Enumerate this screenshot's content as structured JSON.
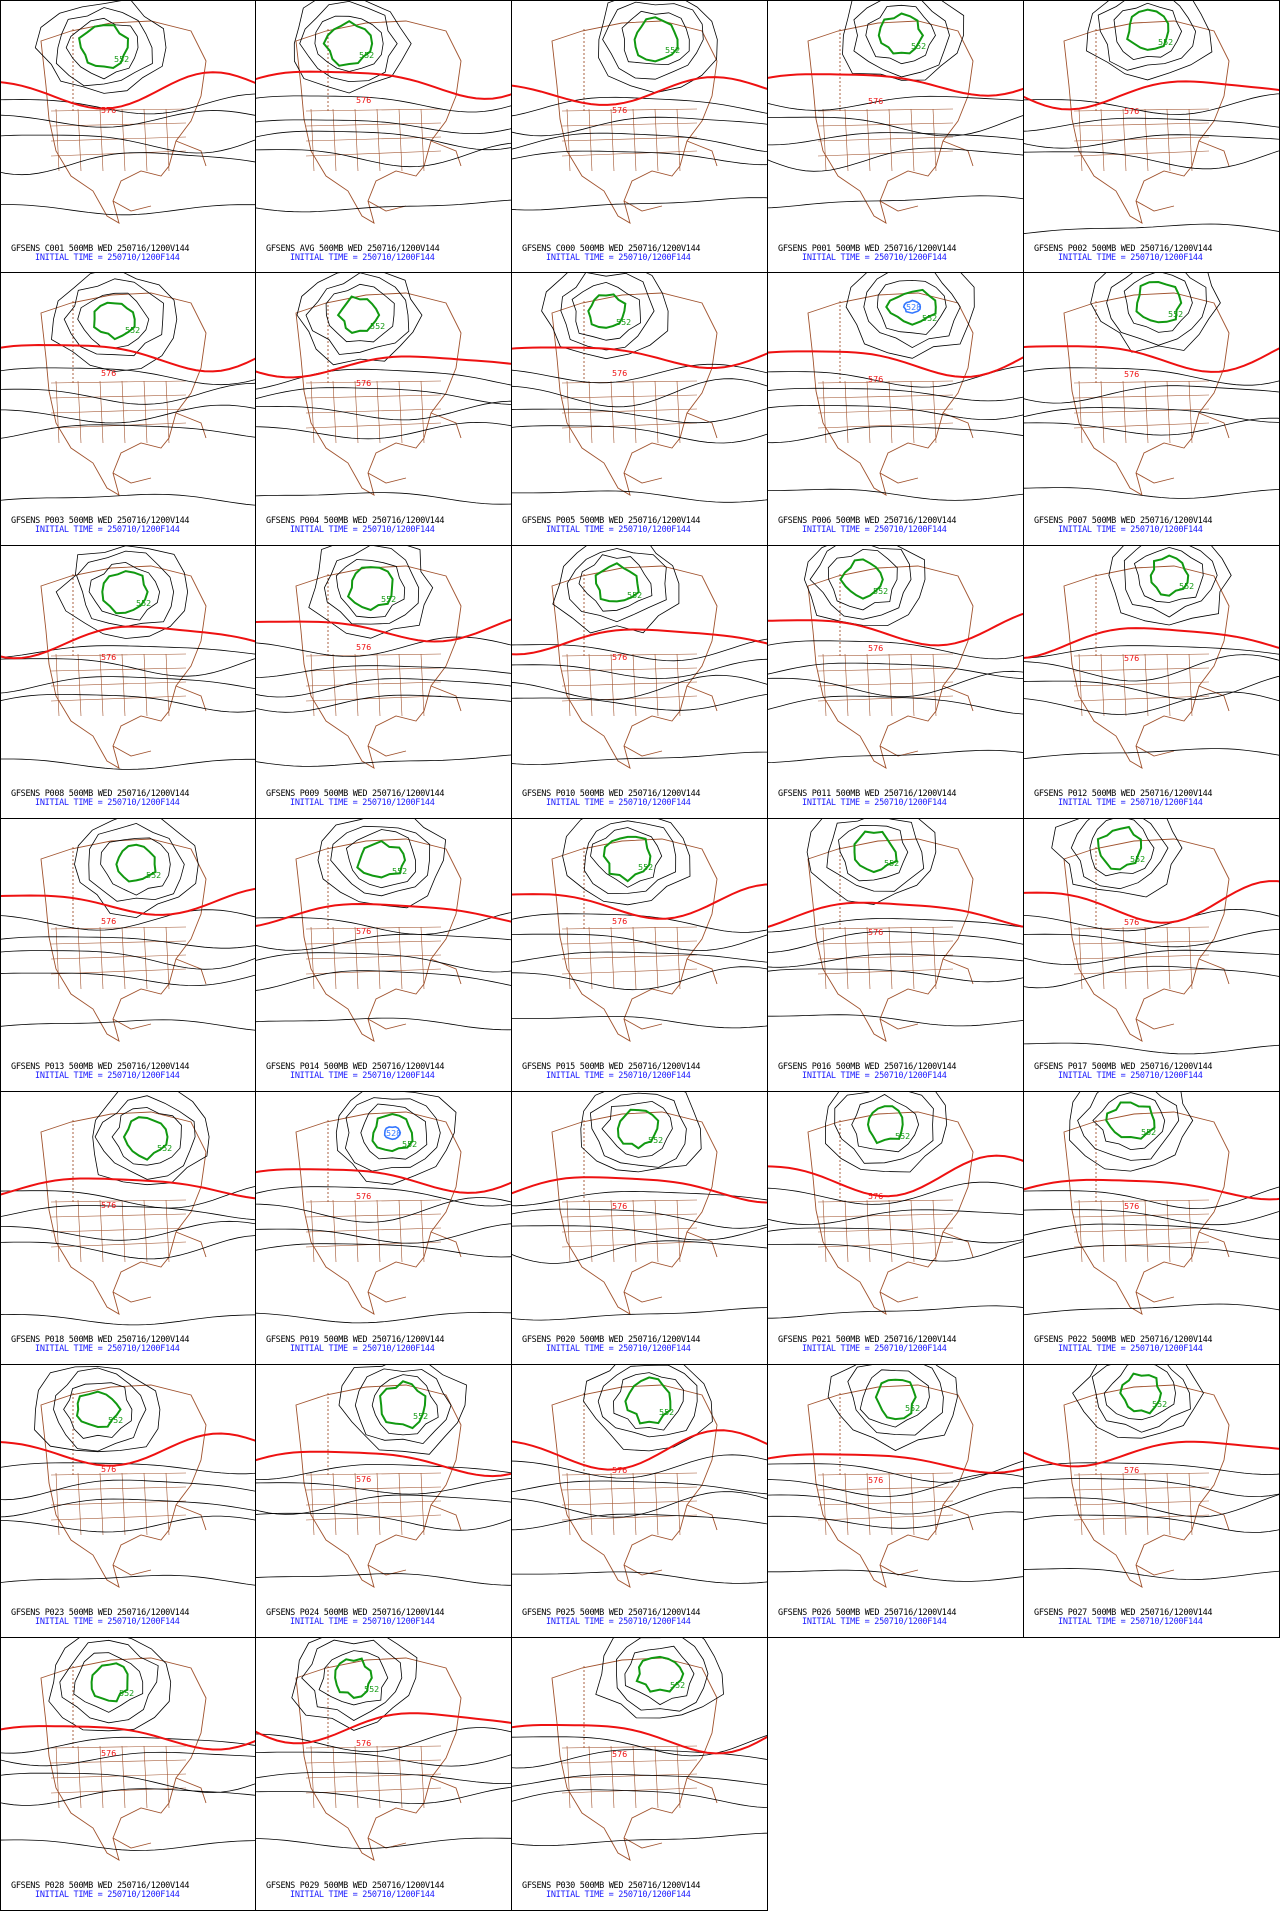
{
  "caption_line2": "INITIAL TIME = 250710/1200F144",
  "contour_labels": {
    "red": "576",
    "green": "552",
    "blue": "528"
  },
  "colors": {
    "map_outline": "#a0522d",
    "contour": "#000000",
    "line_576": "#ee1111",
    "line_552": "#119911",
    "line_528": "#3377ff",
    "caption2": "#1a1aff"
  },
  "panels": [
    {
      "title": "GFSENS C001 500MB WED 250716/1200V144",
      "blue": false
    },
    {
      "title": "GFSENS AVG 500MB WED 250716/1200V144",
      "blue": false
    },
    {
      "title": "GFSENS C000 500MB WED 250716/1200V144",
      "blue": false
    },
    {
      "title": "GFSENS P001 500MB WED 250716/1200V144",
      "blue": false
    },
    {
      "title": "GFSENS P002 500MB WED 250716/1200V144",
      "blue": false
    },
    {
      "title": "GFSENS P003 500MB WED 250716/1200V144",
      "blue": false
    },
    {
      "title": "GFSENS P004 500MB WED 250716/1200V144",
      "blue": false
    },
    {
      "title": "GFSENS P005 500MB WED 250716/1200V144",
      "blue": false
    },
    {
      "title": "GFSENS P006 500MB WED 250716/1200V144",
      "blue": true
    },
    {
      "title": "GFSENS P007 500MB WED 250716/1200V144",
      "blue": false
    },
    {
      "title": "GFSENS P008 500MB WED 250716/1200V144",
      "blue": false
    },
    {
      "title": "GFSENS P009 500MB WED 250716/1200V144",
      "blue": false
    },
    {
      "title": "GFSENS P010 500MB WED 250716/1200V144",
      "blue": false
    },
    {
      "title": "GFSENS P011 500MB WED 250716/1200V144",
      "blue": false
    },
    {
      "title": "GFSENS P012 500MB WED 250716/1200V144",
      "blue": false
    },
    {
      "title": "GFSENS P013 500MB WED 250716/1200V144",
      "blue": false
    },
    {
      "title": "GFSENS P014 500MB WED 250716/1200V144",
      "blue": false
    },
    {
      "title": "GFSENS P015 500MB WED 250716/1200V144",
      "blue": false
    },
    {
      "title": "GFSENS P016 500MB WED 250716/1200V144",
      "blue": false
    },
    {
      "title": "GFSENS P017 500MB WED 250716/1200V144",
      "blue": false
    },
    {
      "title": "GFSENS P018 500MB WED 250716/1200V144",
      "blue": false
    },
    {
      "title": "GFSENS P019 500MB WED 250716/1200V144",
      "blue": true
    },
    {
      "title": "GFSENS P020 500MB WED 250716/1200V144",
      "blue": false
    },
    {
      "title": "GFSENS P021 500MB WED 250716/1200V144",
      "blue": false
    },
    {
      "title": "GFSENS P022 500MB WED 250716/1200V144",
      "blue": false
    },
    {
      "title": "GFSENS P023 500MB WED 250716/1200V144",
      "blue": false
    },
    {
      "title": "GFSENS P024 500MB WED 250716/1200V144",
      "blue": false
    },
    {
      "title": "GFSENS P025 500MB WED 250716/1200V144",
      "blue": false
    },
    {
      "title": "GFSENS P026 500MB WED 250716/1200V144",
      "blue": false
    },
    {
      "title": "GFSENS P027 500MB WED 250716/1200V144",
      "blue": false
    },
    {
      "title": "GFSENS P028 500MB WED 250716/1200V144",
      "blue": false
    },
    {
      "title": "GFSENS P029 500MB WED 250716/1200V144",
      "blue": false
    },
    {
      "title": "GFSENS P030 500MB WED 250716/1200V144",
      "blue": false
    }
  ]
}
